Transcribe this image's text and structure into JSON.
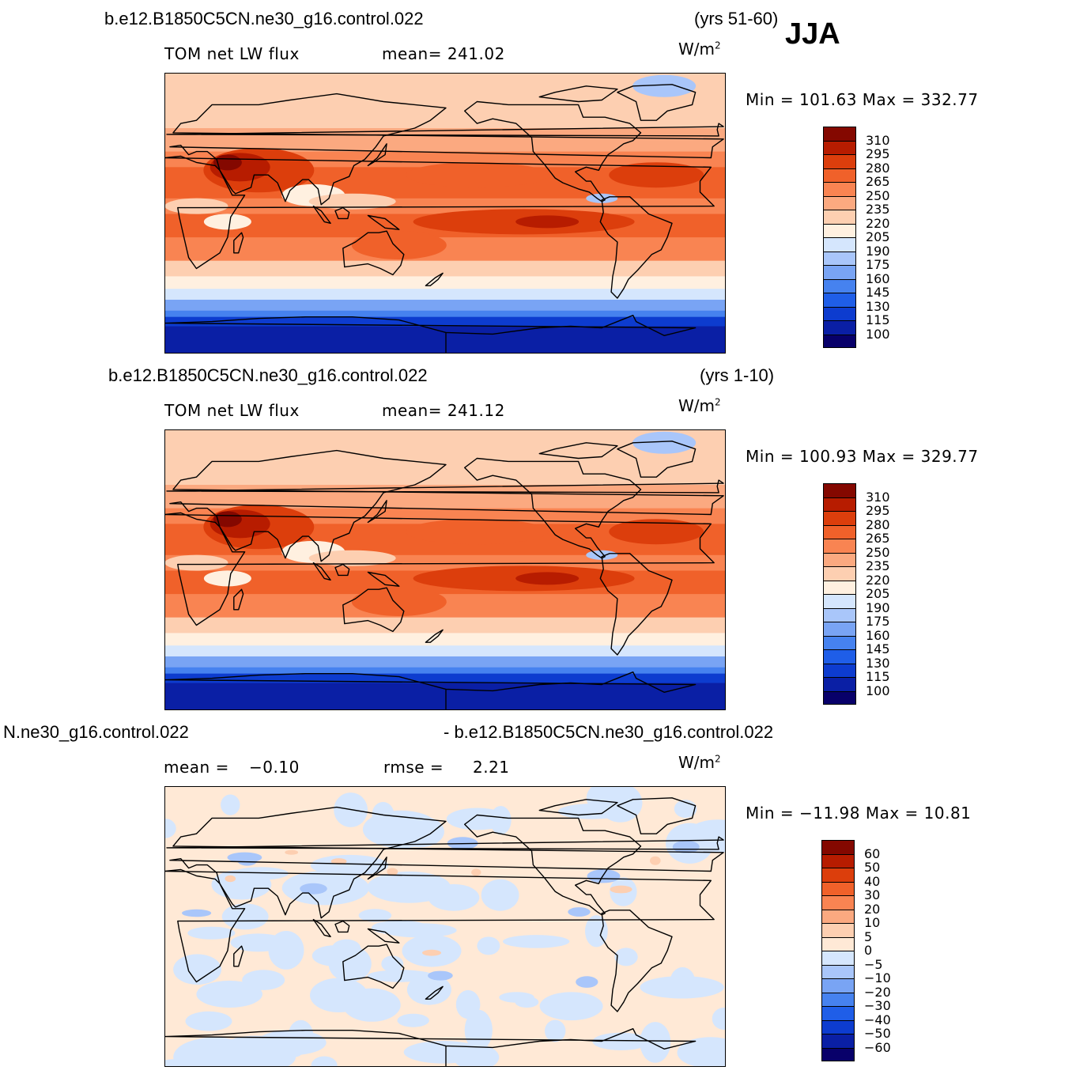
{
  "season": "JJA",
  "colors": {
    "abs_scale": [
      "#08006a",
      "#0a1fa5",
      "#0d3ccf",
      "#1f5ee8",
      "#4682ef",
      "#79a4f4",
      "#a9c6fa",
      "#d5e6fd",
      "#fff0e0",
      "#fdcfb1",
      "#fba980",
      "#f98452",
      "#f0612a",
      "#dc3e0c",
      "#b71c00",
      "#840800"
    ],
    "diff_scale": [
      "#08006a",
      "#0a1fa5",
      "#0d3ccf",
      "#1f5ee8",
      "#4682ef",
      "#79a4f4",
      "#a9c6fa",
      "#d5e6fd",
      "#ffe9d6",
      "#fdcfb1",
      "#fba980",
      "#f98452",
      "#f0612a",
      "#dc3e0c",
      "#b71c00",
      "#840800"
    ]
  },
  "panels": [
    {
      "case_name": "b.e12.B1850C5CN.ne30_g16.control.022",
      "years": "(yrs 51-60)",
      "variable": "TOM  net  LW  flux",
      "stat_text": "mean=  241.02",
      "units_base": "W/m",
      "units_exp": "2",
      "minmax": "Min  =  101.63  Max  =  332.77",
      "ticks": [
        "310",
        "295",
        "280",
        "265",
        "250",
        "235",
        "220",
        "205",
        "190",
        "175",
        "160",
        "145",
        "130",
        "115",
        "100"
      ],
      "map_style": "absolute"
    },
    {
      "case_name": "b.e12.B1850C5CN.ne30_g16.control.022",
      "years": "(yrs 1-10)",
      "variable": "TOM  net  LW  flux",
      "stat_text": "mean=  241.12",
      "units_base": "W/m",
      "units_exp": "2",
      "minmax": "Min  =  100.93  Max  =  329.77",
      "ticks": [
        "310",
        "295",
        "280",
        "265",
        "250",
        "235",
        "220",
        "205",
        "190",
        "175",
        "160",
        "145",
        "130",
        "115",
        "100"
      ],
      "map_style": "absolute"
    },
    {
      "left_title": "N.ne30_g16.control.022",
      "right_title": "- b.e12.B1850C5CN.ne30_g16.control.022",
      "mean_label": "mean  =",
      "mean_value": "−0.10",
      "rmse_label": "rmse  =",
      "rmse_value": "2.21",
      "units_base": "W/m",
      "units_exp": "2",
      "minmax": "Min  =  −11.98  Max  =    10.81",
      "ticks": [
        "60",
        "50",
        "40",
        "30",
        "20",
        "10",
        "5",
        "0",
        "−5",
        "−10",
        "−20",
        "−30",
        "−40",
        "−50",
        "−60"
      ],
      "map_style": "difference"
    }
  ]
}
